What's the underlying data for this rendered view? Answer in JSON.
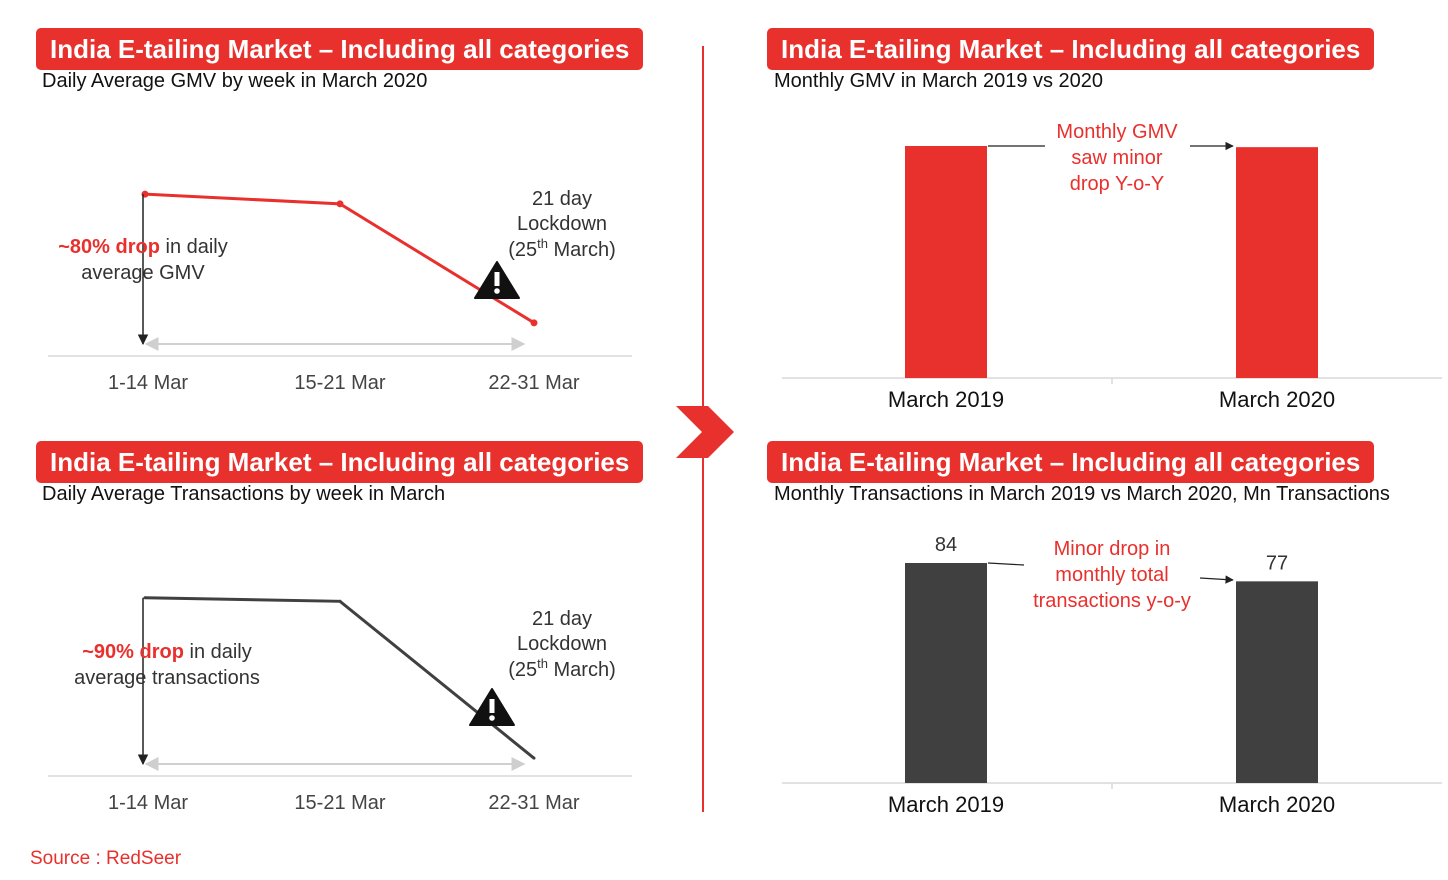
{
  "colors": {
    "accent": "#e8302d",
    "dark": "#404040",
    "axis": "#d9d9d9",
    "text": "#333333"
  },
  "panels": {
    "top_left": {
      "title": "India E-tailing Market – Including all categories",
      "subtitle": "Daily Average GMV by week in March 2020"
    },
    "bottom_left": {
      "title": "India E-tailing Market – Including all categories",
      "subtitle": "Daily Average Transactions by week in March"
    },
    "top_right": {
      "title": "India E-tailing Market – Including all categories",
      "subtitle": "Monthly GMV in March 2019 vs 2020"
    },
    "bottom_right": {
      "title": "India E-tailing Market – Including all categories",
      "subtitle": "Monthly Transactions in March 2019 vs March 2020, Mn Transactions"
    }
  },
  "annotations": {
    "gmv_drop_bold": "~80% drop",
    "gmv_drop_rest1": " in daily",
    "gmv_drop_rest2": "average GMV",
    "txn_drop_bold": "~90% drop",
    "txn_drop_rest1": " in daily",
    "txn_drop_rest2": "average transactions",
    "lockdown_line1": "21 day",
    "lockdown_line2": "Lockdown",
    "lockdown_open": "(25",
    "lockdown_sup": "th",
    "lockdown_close": " March)",
    "gmv_yoy": [
      "Monthly GMV",
      "saw minor",
      "drop Y-o-Y"
    ],
    "txn_yoy": [
      "Minor drop in",
      "monthly total",
      "transactions y-o-y"
    ],
    "warning_icon": "warning-triangle-icon",
    "arrow_icon": "chevron-right-icon"
  },
  "source": "Source : RedSeer",
  "chart_data": [
    {
      "type": "line",
      "categories": [
        "1-14 Mar",
        "15-21 Mar",
        "22-31 Mar"
      ],
      "series": [
        {
          "values": [
            100,
            94,
            20
          ]
        }
      ],
      "ylim": [
        0,
        120
      ],
      "color": "#e8302d"
    },
    {
      "type": "line",
      "categories": [
        "1-14 Mar",
        "15-21 Mar",
        "22-31 Mar"
      ],
      "series": [
        {
          "values": [
            100,
            98,
            10
          ]
        }
      ],
      "ylim": [
        0,
        115
      ],
      "color": "#404040"
    },
    {
      "type": "bar",
      "categories": [
        "March 2019",
        "March 2020"
      ],
      "values": [
        100,
        99.5
      ],
      "ylim": [
        0,
        100
      ],
      "color": "#e8302d"
    },
    {
      "type": "bar",
      "categories": [
        "March 2019",
        "March 2020"
      ],
      "values": [
        84,
        77
      ],
      "data_labels": [
        "84",
        "77"
      ],
      "ylim": [
        0,
        84
      ],
      "color": "#404040"
    }
  ]
}
